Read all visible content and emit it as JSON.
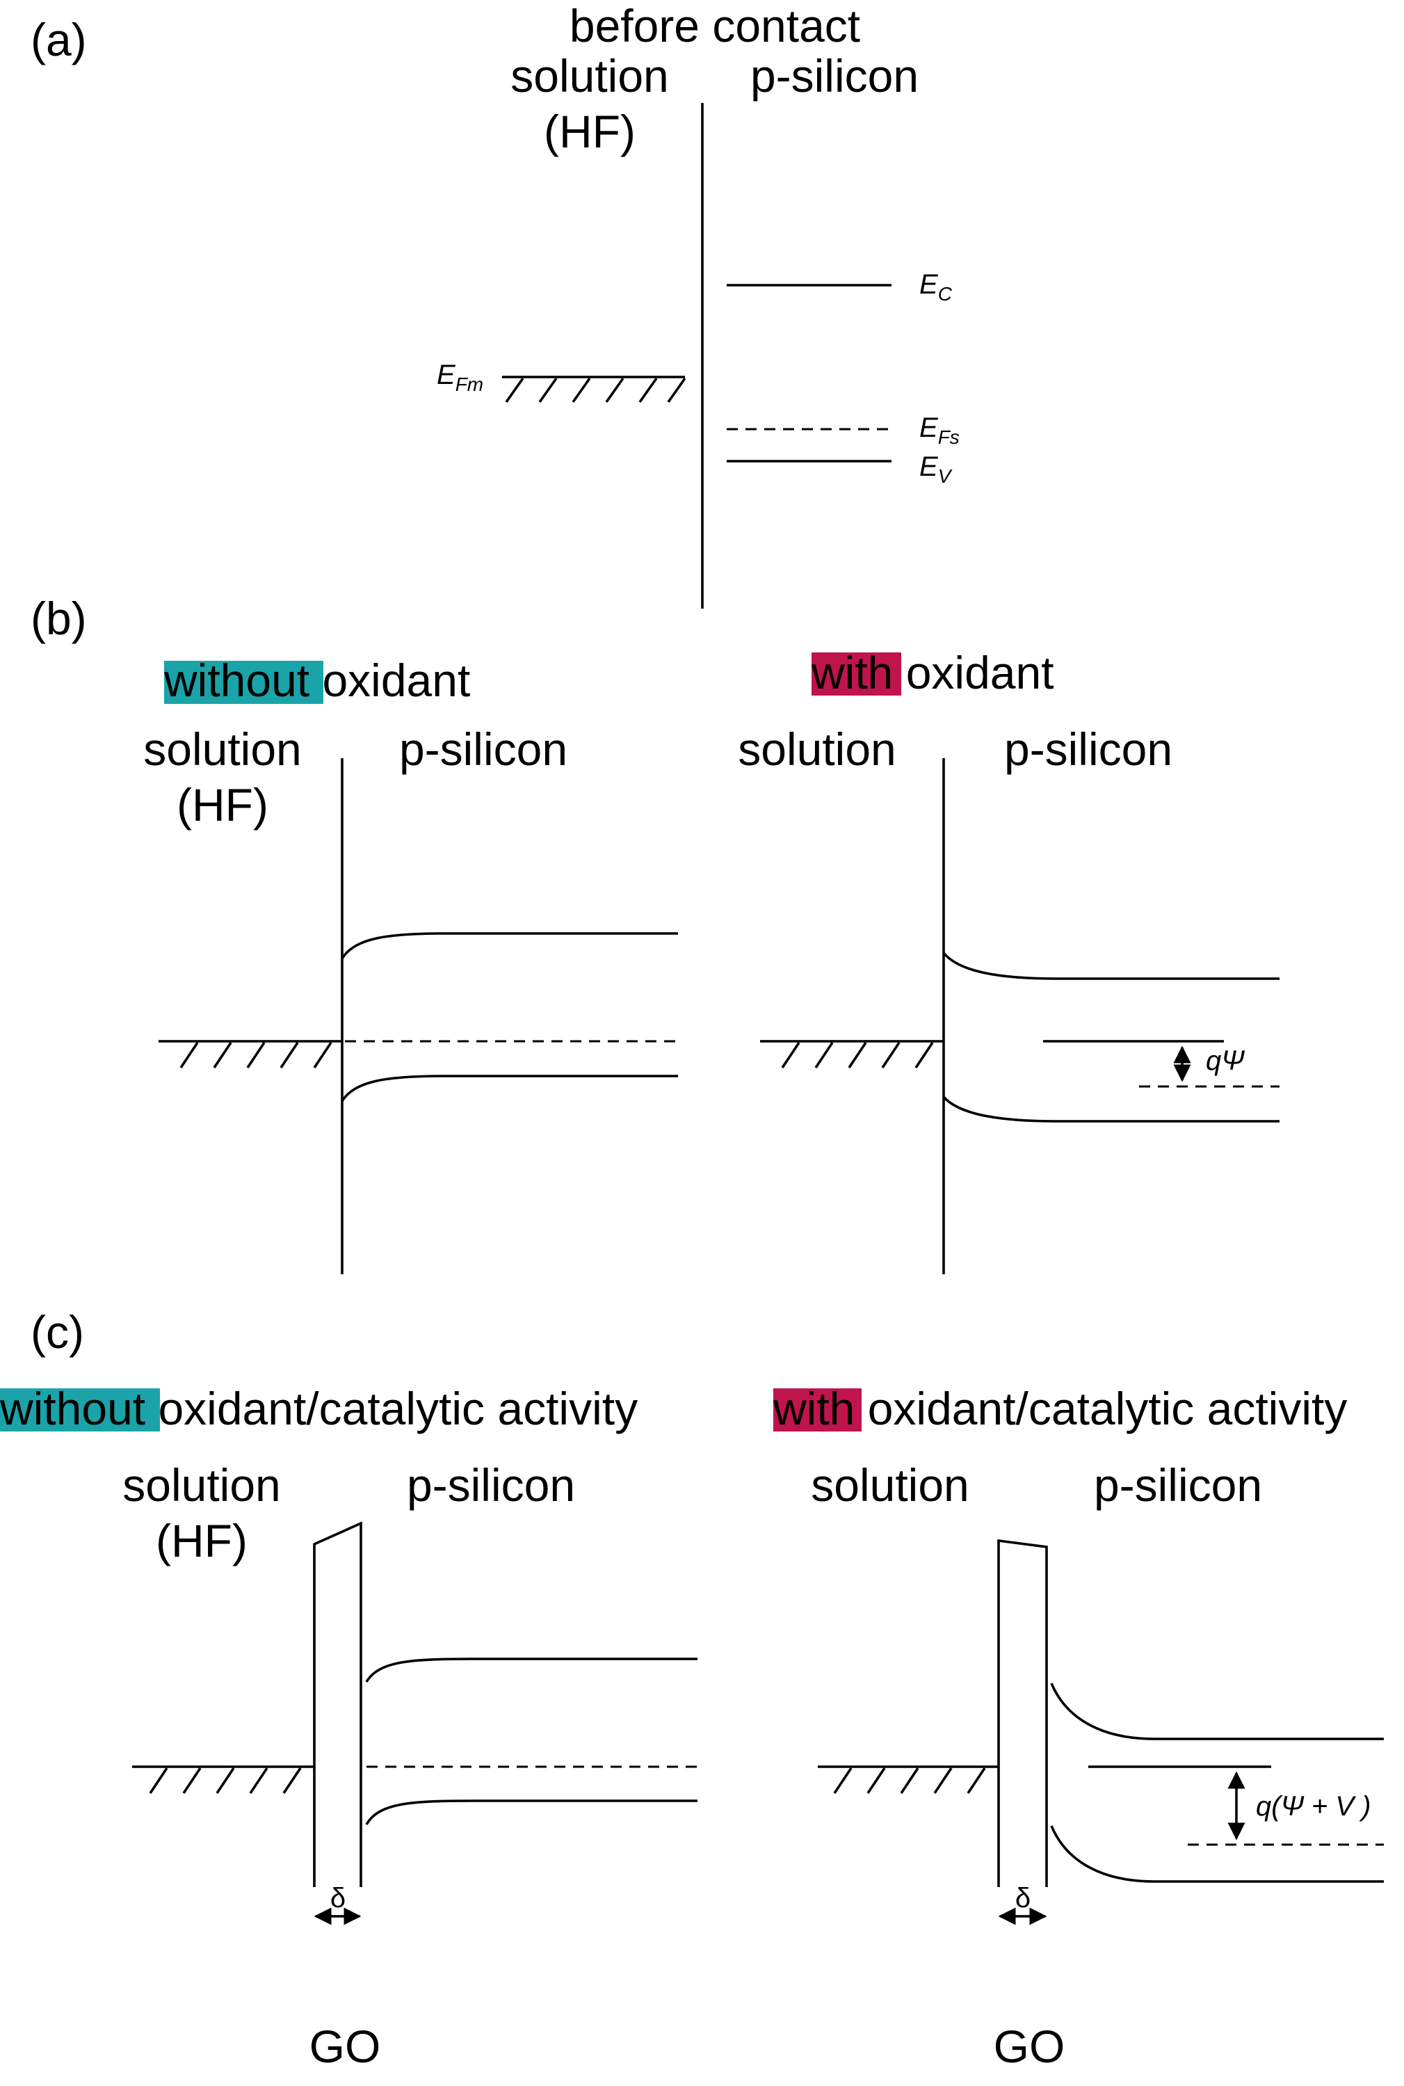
{
  "colors": {
    "without_highlight": "#1aa3a8",
    "with_highlight": "#c0144c"
  },
  "panel_a": {
    "label": "(a)",
    "heading": "before contact",
    "left_label": "solution",
    "left_sublabel": "(HF)",
    "right_label": "p-silicon",
    "levels": {
      "ec": {
        "main": "E",
        "sub": "C"
      },
      "efs": {
        "main": "E",
        "sub": "Fs"
      },
      "ev": {
        "main": "E",
        "sub": "V"
      },
      "efm": {
        "main": "E",
        "sub": "Fm"
      }
    }
  },
  "panel_b": {
    "label": "(b)",
    "left": {
      "title_highlight": "without",
      "title_rest": " oxidant",
      "left_label": "solution",
      "left_sublabel": "(HF)",
      "right_label": "p-silicon"
    },
    "right": {
      "title_highlight": "with",
      "title_rest": " oxidant",
      "left_label": "solution",
      "right_label": "p-silicon",
      "annotation": "qΨ"
    }
  },
  "panel_c": {
    "label": "(c)",
    "left": {
      "title_highlight": "without",
      "title_rest": " oxidant/catalytic activity",
      "left_label": "solution",
      "left_sublabel": "(HF)",
      "right_label": "p-silicon",
      "delta": "δ",
      "layer_label": "GO"
    },
    "right": {
      "title_highlight": "with",
      "title_rest": " oxidant/catalytic activity",
      "left_label": "solution",
      "right_label": "p-silicon",
      "annotation": "q(Ψ + V )",
      "delta": "δ",
      "layer_label": "GO"
    }
  }
}
